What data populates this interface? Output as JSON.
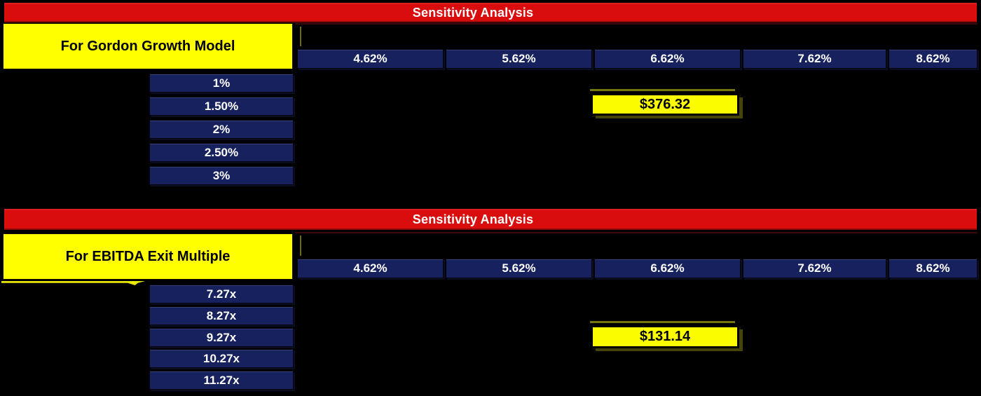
{
  "palette": {
    "background": "#000000",
    "header_red": "#D90D0D",
    "cell_navy": "#16215E",
    "label_yellow": "#FFFF00",
    "text_white": "#FFFFFF",
    "text_black": "#000000"
  },
  "chart_data": [
    {
      "type": "table",
      "title": "Sensitivity Analysis",
      "subtitle": "For Gordon Growth Model",
      "col_headers": [
        "4.62%",
        "5.62%",
        "6.62%",
        "7.62%",
        "8.62%"
      ],
      "row_headers": [
        "1%",
        "1.50%",
        "2%",
        "2.50%",
        "3%"
      ],
      "highlighted_cells": [
        {
          "row": "1.50%",
          "col": "6.62%",
          "value": "$376.32"
        }
      ],
      "body_cells_visible_values": "all other body cells are blank (black)"
    },
    {
      "type": "table",
      "title": "Sensitivity Analysis",
      "subtitle": "For EBITDA Exit Multiple",
      "col_headers": [
        "4.62%",
        "5.62%",
        "6.62%",
        "7.62%",
        "8.62%"
      ],
      "row_headers": [
        "7.27x",
        "8.27x",
        "9.27x",
        "10.27x",
        "11.27x"
      ],
      "highlighted_cells": [
        {
          "row": "9.27x",
          "col": "6.62%",
          "value": "$131.14"
        }
      ],
      "body_cells_visible_values": "all other body cells are blank (black)"
    }
  ]
}
